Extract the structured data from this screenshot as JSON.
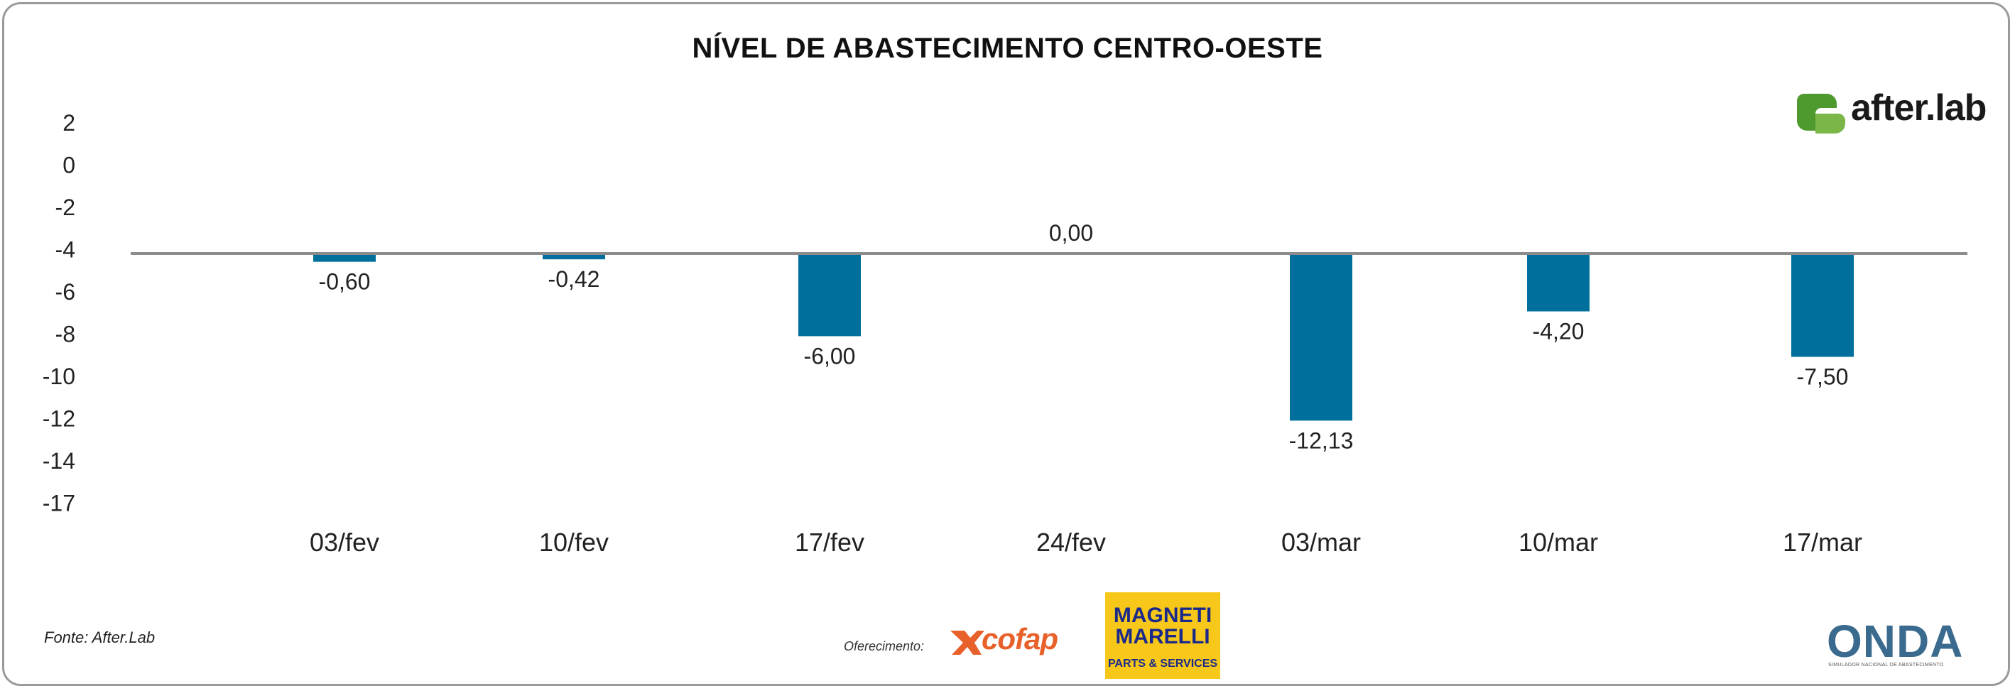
{
  "title": "NÍVEL DE ABASTECIMENTO CENTRO-OESTE",
  "source": "Fonte: After.Lab",
  "brand": {
    "name": "after.lab",
    "accent": "#7ab648",
    "accent_dark": "#4e9a2e"
  },
  "sponsors": {
    "offer_label": "Oferecimento:",
    "cofap": "cofap",
    "magneti_marelli_top": "MAGNETI MARELLI",
    "magneti_marelli_bottom": "PARTS & SERVICES",
    "onda": "ONDA",
    "onda_tagline": "SIMULADOR NACIONAL DE ABASTECIMENTO"
  },
  "colors": {
    "bar": "#006f9c",
    "baseline": "#8c8c8c",
    "frame": "#9a9a9a"
  },
  "chart_data": {
    "type": "bar",
    "title": "NÍVEL DE ABASTECIMENTO CENTRO-OESTE",
    "categories": [
      "03/fev",
      "10/fev",
      "17/fev",
      "24/fev",
      "03/mar",
      "10/mar",
      "17/mar"
    ],
    "values": [
      -0.6,
      -0.42,
      -6.0,
      0.0,
      -12.13,
      -4.2,
      -7.5
    ],
    "value_labels": [
      "-0,60",
      "-0,42",
      "-6,00",
      "0,00",
      "-12,13",
      "-4,20",
      "-7,50"
    ],
    "yticks": [
      "2",
      "0",
      "-2",
      "-4",
      "-6",
      "-8",
      "-10",
      "-12",
      "-14",
      "-17"
    ],
    "xlabel": "",
    "ylabel": "",
    "grid": false,
    "legend": "none"
  }
}
